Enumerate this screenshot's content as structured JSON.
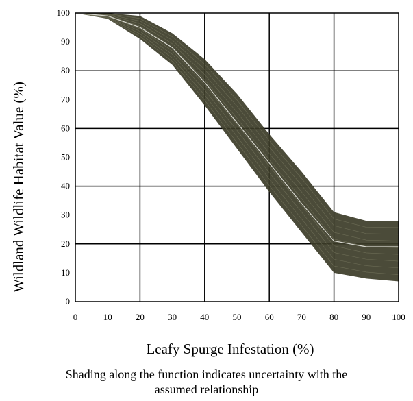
{
  "chart_data": {
    "type": "line",
    "xlabel": "Leafy Spurge Infestation (%)",
    "ylabel": "Wildland Wildlife Habitat Value (%)",
    "x_ticks": [
      "0",
      "10",
      "20",
      "30",
      "40",
      "50",
      "60",
      "70",
      "80",
      "90",
      "100"
    ],
    "y_ticks": [
      "0",
      "10",
      "20",
      "30",
      "40",
      "50",
      "60",
      "70",
      "80",
      "90",
      "100"
    ],
    "xlim": [
      0,
      100
    ],
    "ylim": [
      0,
      100
    ],
    "grid": true,
    "band_color": "#3c3c28",
    "line_color": "#d8d8d0",
    "series": [
      {
        "x": [
          0,
          10,
          20,
          30,
          40,
          50,
          60,
          70,
          80,
          90,
          100
        ],
        "y": [
          100,
          99,
          95,
          88,
          76,
          62,
          48,
          34,
          21,
          19,
          19
        ]
      }
    ],
    "uncertainty_band": {
      "x": [
        0,
        10,
        20,
        30,
        40,
        50,
        60,
        70,
        80,
        90,
        100
      ],
      "upper": [
        100,
        100,
        99,
        93,
        84,
        72,
        58,
        45,
        31,
        28,
        28
      ],
      "lower": [
        100,
        98,
        91,
        82,
        68,
        53,
        38,
        24,
        10,
        8,
        7
      ]
    }
  },
  "caption": {
    "line1": "Shading along the function indicates uncertainty with the",
    "line2": "assumed relationship"
  }
}
